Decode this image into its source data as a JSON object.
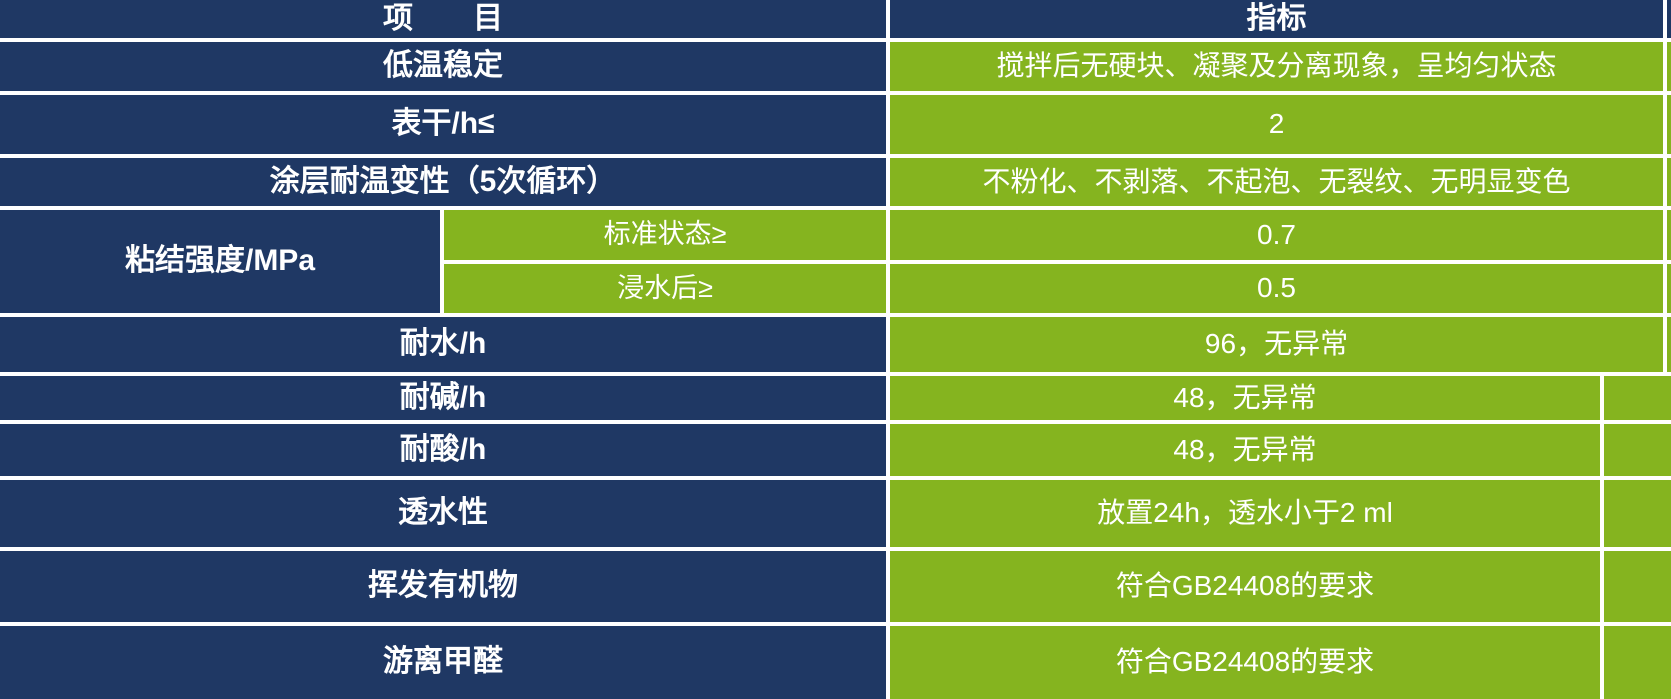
{
  "header": {
    "item": "项　　目",
    "indicator": "指标"
  },
  "rows": [
    {
      "item": "低温稳定",
      "value": "搅拌后无硬块、凝聚及分离现象，呈均匀状态"
    },
    {
      "item": "表干/h≤",
      "value": "2"
    },
    {
      "item": "涂层耐温变性（5次循环）",
      "value": "不粉化、不剥落、不起泡、无裂纹、无明显变色"
    },
    {
      "group": "粘结强度/MPa",
      "sub": [
        {
          "item": "标准状态≥",
          "value": "0.7"
        },
        {
          "item": "浸水后≥",
          "value": "0.5"
        }
      ]
    },
    {
      "item": "耐水/h",
      "value": "96，无异常"
    },
    {
      "item": "耐碱/h",
      "value": "48，无异常"
    },
    {
      "item": "耐酸/h",
      "value": "48，无异常"
    },
    {
      "item": "透水性",
      "value": "放置24h，透水小于2 ml"
    },
    {
      "item": "挥发有机物",
      "value": "符合GB24408的要求"
    },
    {
      "item": "游离甲醛",
      "value": "符合GB24408的要求"
    }
  ],
  "colors": {
    "dark_blue": "#1F3864",
    "green": "#85B41F",
    "grid_white": "#FFFFFF",
    "text_white": "#FFFFFF"
  }
}
